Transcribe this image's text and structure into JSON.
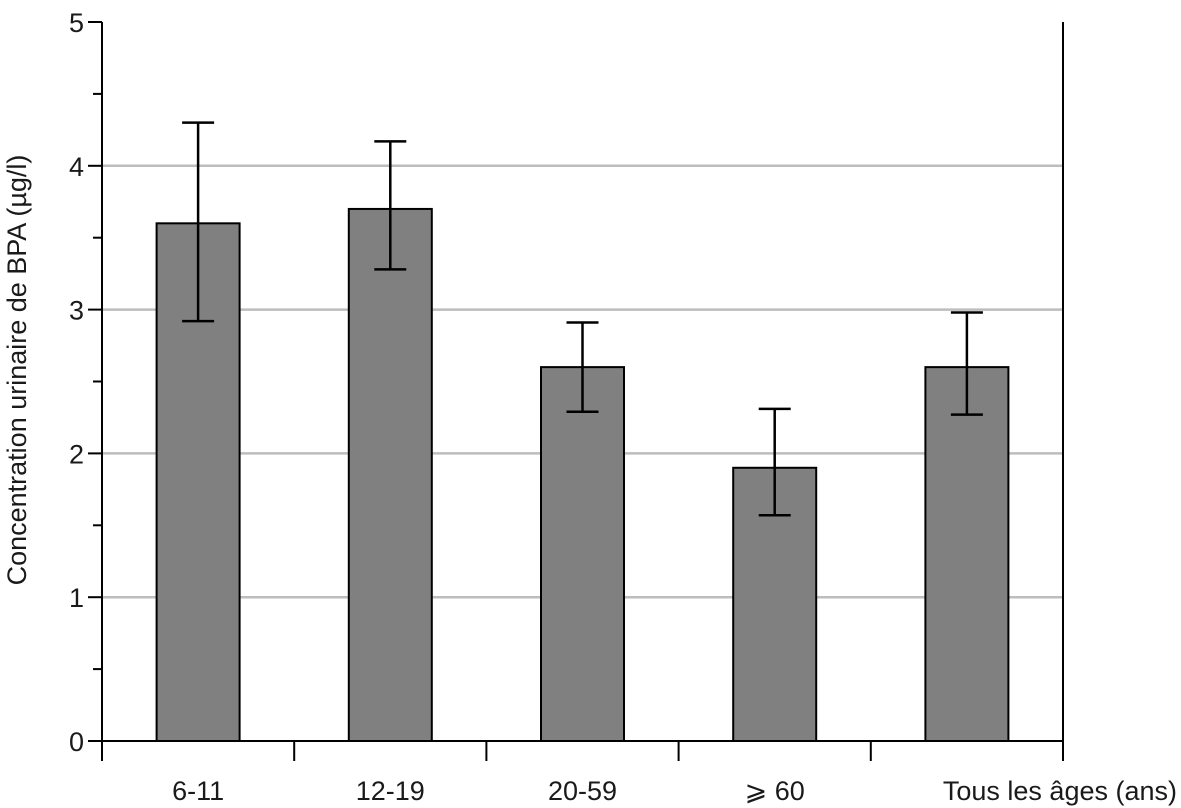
{
  "chart_data": {
    "type": "bar",
    "title": "",
    "xlabel": "",
    "ylabel": "Concentration urinaire de BPA (µg/l)",
    "ylim": [
      0,
      5
    ],
    "yticks": [
      0,
      1,
      2,
      3,
      4,
      5
    ],
    "ytick_labels": [
      "0",
      "1",
      "2",
      "3",
      "4",
      "5"
    ],
    "y_minor_step": 0.5,
    "grid": true,
    "grid_color": "#bdbdbd",
    "categories": [
      "6-11",
      "12-19",
      "20-59",
      "⩾ 60",
      "Tous les âges (ans)"
    ],
    "values": [
      3.6,
      3.7,
      2.6,
      1.9,
      2.6
    ],
    "error_low": [
      2.92,
      3.28,
      2.29,
      1.57,
      2.27
    ],
    "error_high": [
      4.3,
      4.17,
      2.91,
      2.31,
      2.98
    ],
    "bar_color": "#808080",
    "edge_color": "#000000"
  }
}
